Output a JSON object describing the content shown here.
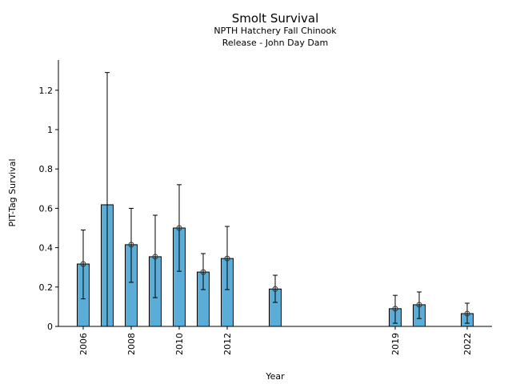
{
  "chart_data": {
    "type": "bar",
    "title": "Smolt Survival",
    "subtitle_lines": [
      "NPTH Hatchery Fall Chinook",
      "Release - John Day Dam"
    ],
    "xlabel": "Year",
    "ylabel": "PIT-Tag Survival",
    "xlim": [
      2006,
      2022
    ],
    "ylim": [
      0,
      1.35
    ],
    "yticks": [
      0,
      0.2,
      0.4,
      0.6,
      0.8,
      1,
      1.2
    ],
    "ytick_labels": [
      "0",
      "0.2",
      "0.4",
      "0.6",
      "0.8",
      "1",
      "1.2"
    ],
    "xticks": [
      2006,
      2008,
      2010,
      2012,
      2019,
      2022
    ],
    "xtick_labels": [
      "2006",
      "2008",
      "2010",
      "2012",
      "2019",
      "2022"
    ],
    "bar_color": "#5aadd6",
    "grid": false,
    "series": [
      {
        "name": "PIT-Tag Survival",
        "x": [
          2006,
          2007,
          2008,
          2009,
          2010,
          2011,
          2012,
          2014,
          2019,
          2020,
          2022
        ],
        "values": [
          0.317,
          0.618,
          0.415,
          0.354,
          0.5,
          0.276,
          0.345,
          0.19,
          0.09,
          0.11,
          0.065
        ],
        "lower": [
          0.14,
          0.0,
          0.224,
          0.146,
          0.28,
          0.187,
          0.187,
          0.122,
          0.016,
          0.04,
          0.016
        ],
        "upper": [
          0.49,
          1.29,
          0.6,
          0.565,
          0.72,
          0.37,
          0.508,
          0.26,
          0.158,
          0.175,
          0.118
        ],
        "marker": [
          true,
          false,
          true,
          true,
          true,
          true,
          true,
          true,
          true,
          true,
          true
        ]
      }
    ]
  }
}
